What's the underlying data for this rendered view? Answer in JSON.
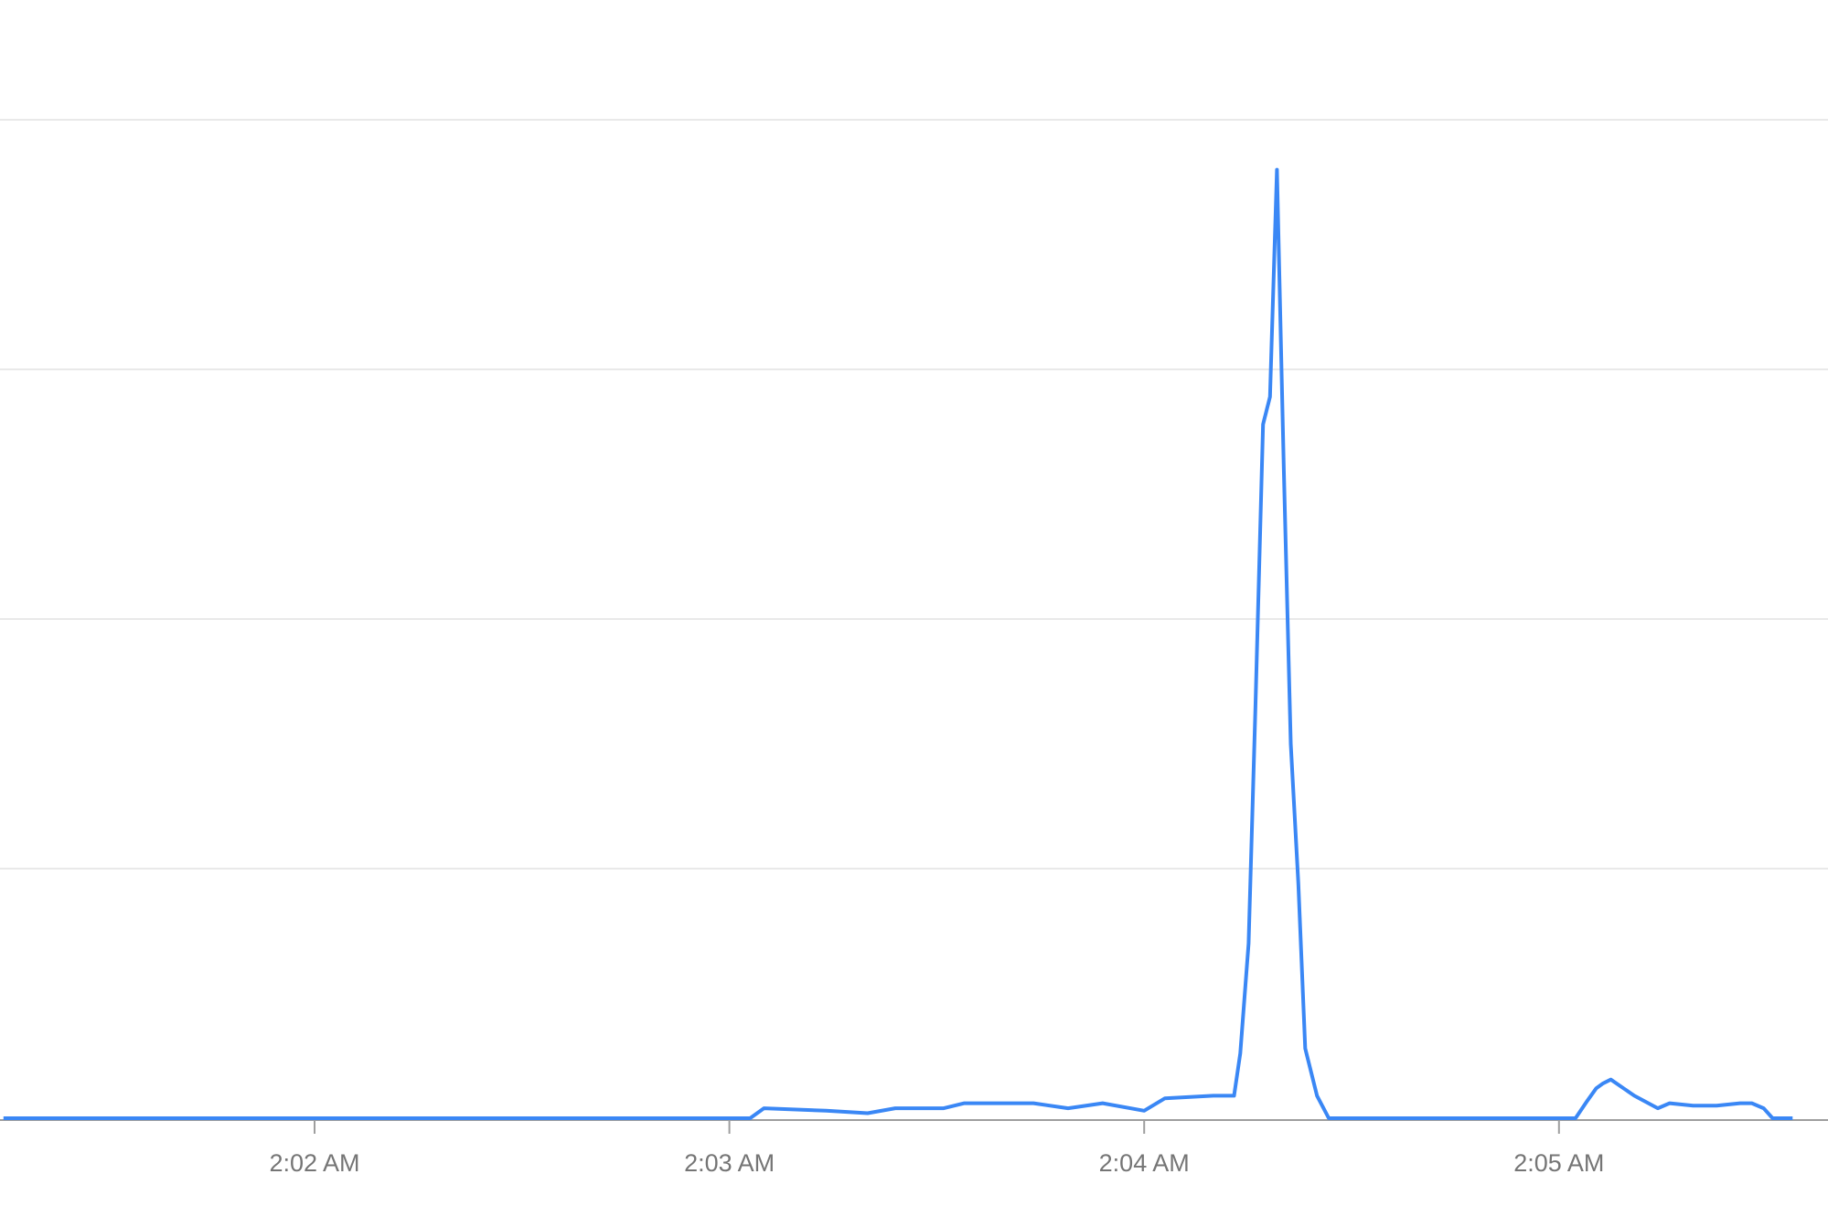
{
  "chart_data": {
    "type": "line",
    "title": "",
    "xlabel": "",
    "ylabel": "",
    "x_tick_labels": [
      "2:02 AM",
      "2:03 AM",
      "2:04 AM",
      "2:05 AM"
    ],
    "x_ticks": [
      "2:02:00",
      "2:03:00",
      "2:04:00",
      "2:05:00"
    ],
    "xlim": [
      "2:01:15",
      "2:05:19"
    ],
    "ylim": [
      0,
      4
    ],
    "y_gridlines": [
      1,
      2,
      3,
      4
    ],
    "y_tick_labels_shown": false,
    "grid": true,
    "color": "#3a87f5",
    "series": [
      {
        "points": [
          [
            "2:01:15",
            0
          ],
          [
            "2:03:03",
            0
          ],
          [
            "2:03:05",
            0.04
          ],
          [
            "2:03:14",
            0.03
          ],
          [
            "2:03:20",
            0.02
          ],
          [
            "2:03:24",
            0.04
          ],
          [
            "2:03:31",
            0.04
          ],
          [
            "2:03:34",
            0.06
          ],
          [
            "2:03:44",
            0.06
          ],
          [
            "2:03:49",
            0.04
          ],
          [
            "2:03:54",
            0.06
          ],
          [
            "2:04:00",
            0.03
          ],
          [
            "2:04:03",
            0.08
          ],
          [
            "2:04:10",
            0.09
          ],
          [
            "2:04:13",
            0.09
          ],
          [
            "2:04:13.9",
            0.26
          ],
          [
            "2:04:15.1",
            0.7
          ],
          [
            "2:04:16.1",
            1.65
          ],
          [
            "2:04:17.2",
            2.78
          ],
          [
            "2:04:18.2",
            2.89
          ],
          [
            "2:04:19.2",
            3.8
          ],
          [
            "2:04:20.2",
            2.6
          ],
          [
            "2:04:21.2",
            1.5
          ],
          [
            "2:04:22.3",
            0.94
          ],
          [
            "2:04:23.3",
            0.28
          ],
          [
            "2:04:25",
            0.09
          ],
          [
            "2:04:26.7",
            0
          ],
          [
            "2:05:02.4",
            0
          ],
          [
            "2:05:04.1",
            0.07
          ],
          [
            "2:05:05.4",
            0.12
          ],
          [
            "2:05:06.4",
            0.14
          ],
          [
            "2:05:07.5",
            0.155
          ],
          [
            "2:05:10.9",
            0.09
          ],
          [
            "2:05:14.3",
            0.04
          ],
          [
            "2:05:16",
            0.06
          ],
          [
            "2:05:19.4",
            0.05
          ],
          [
            "2:05:22.8",
            0.05
          ],
          [
            "2:05:26.2",
            0.06
          ],
          [
            "2:05:27.9",
            0.06
          ],
          [
            "2:05:29.6",
            0.04
          ],
          [
            "2:05:30.9",
            0
          ],
          [
            "2:05:33.8",
            0
          ]
        ]
      }
    ]
  }
}
